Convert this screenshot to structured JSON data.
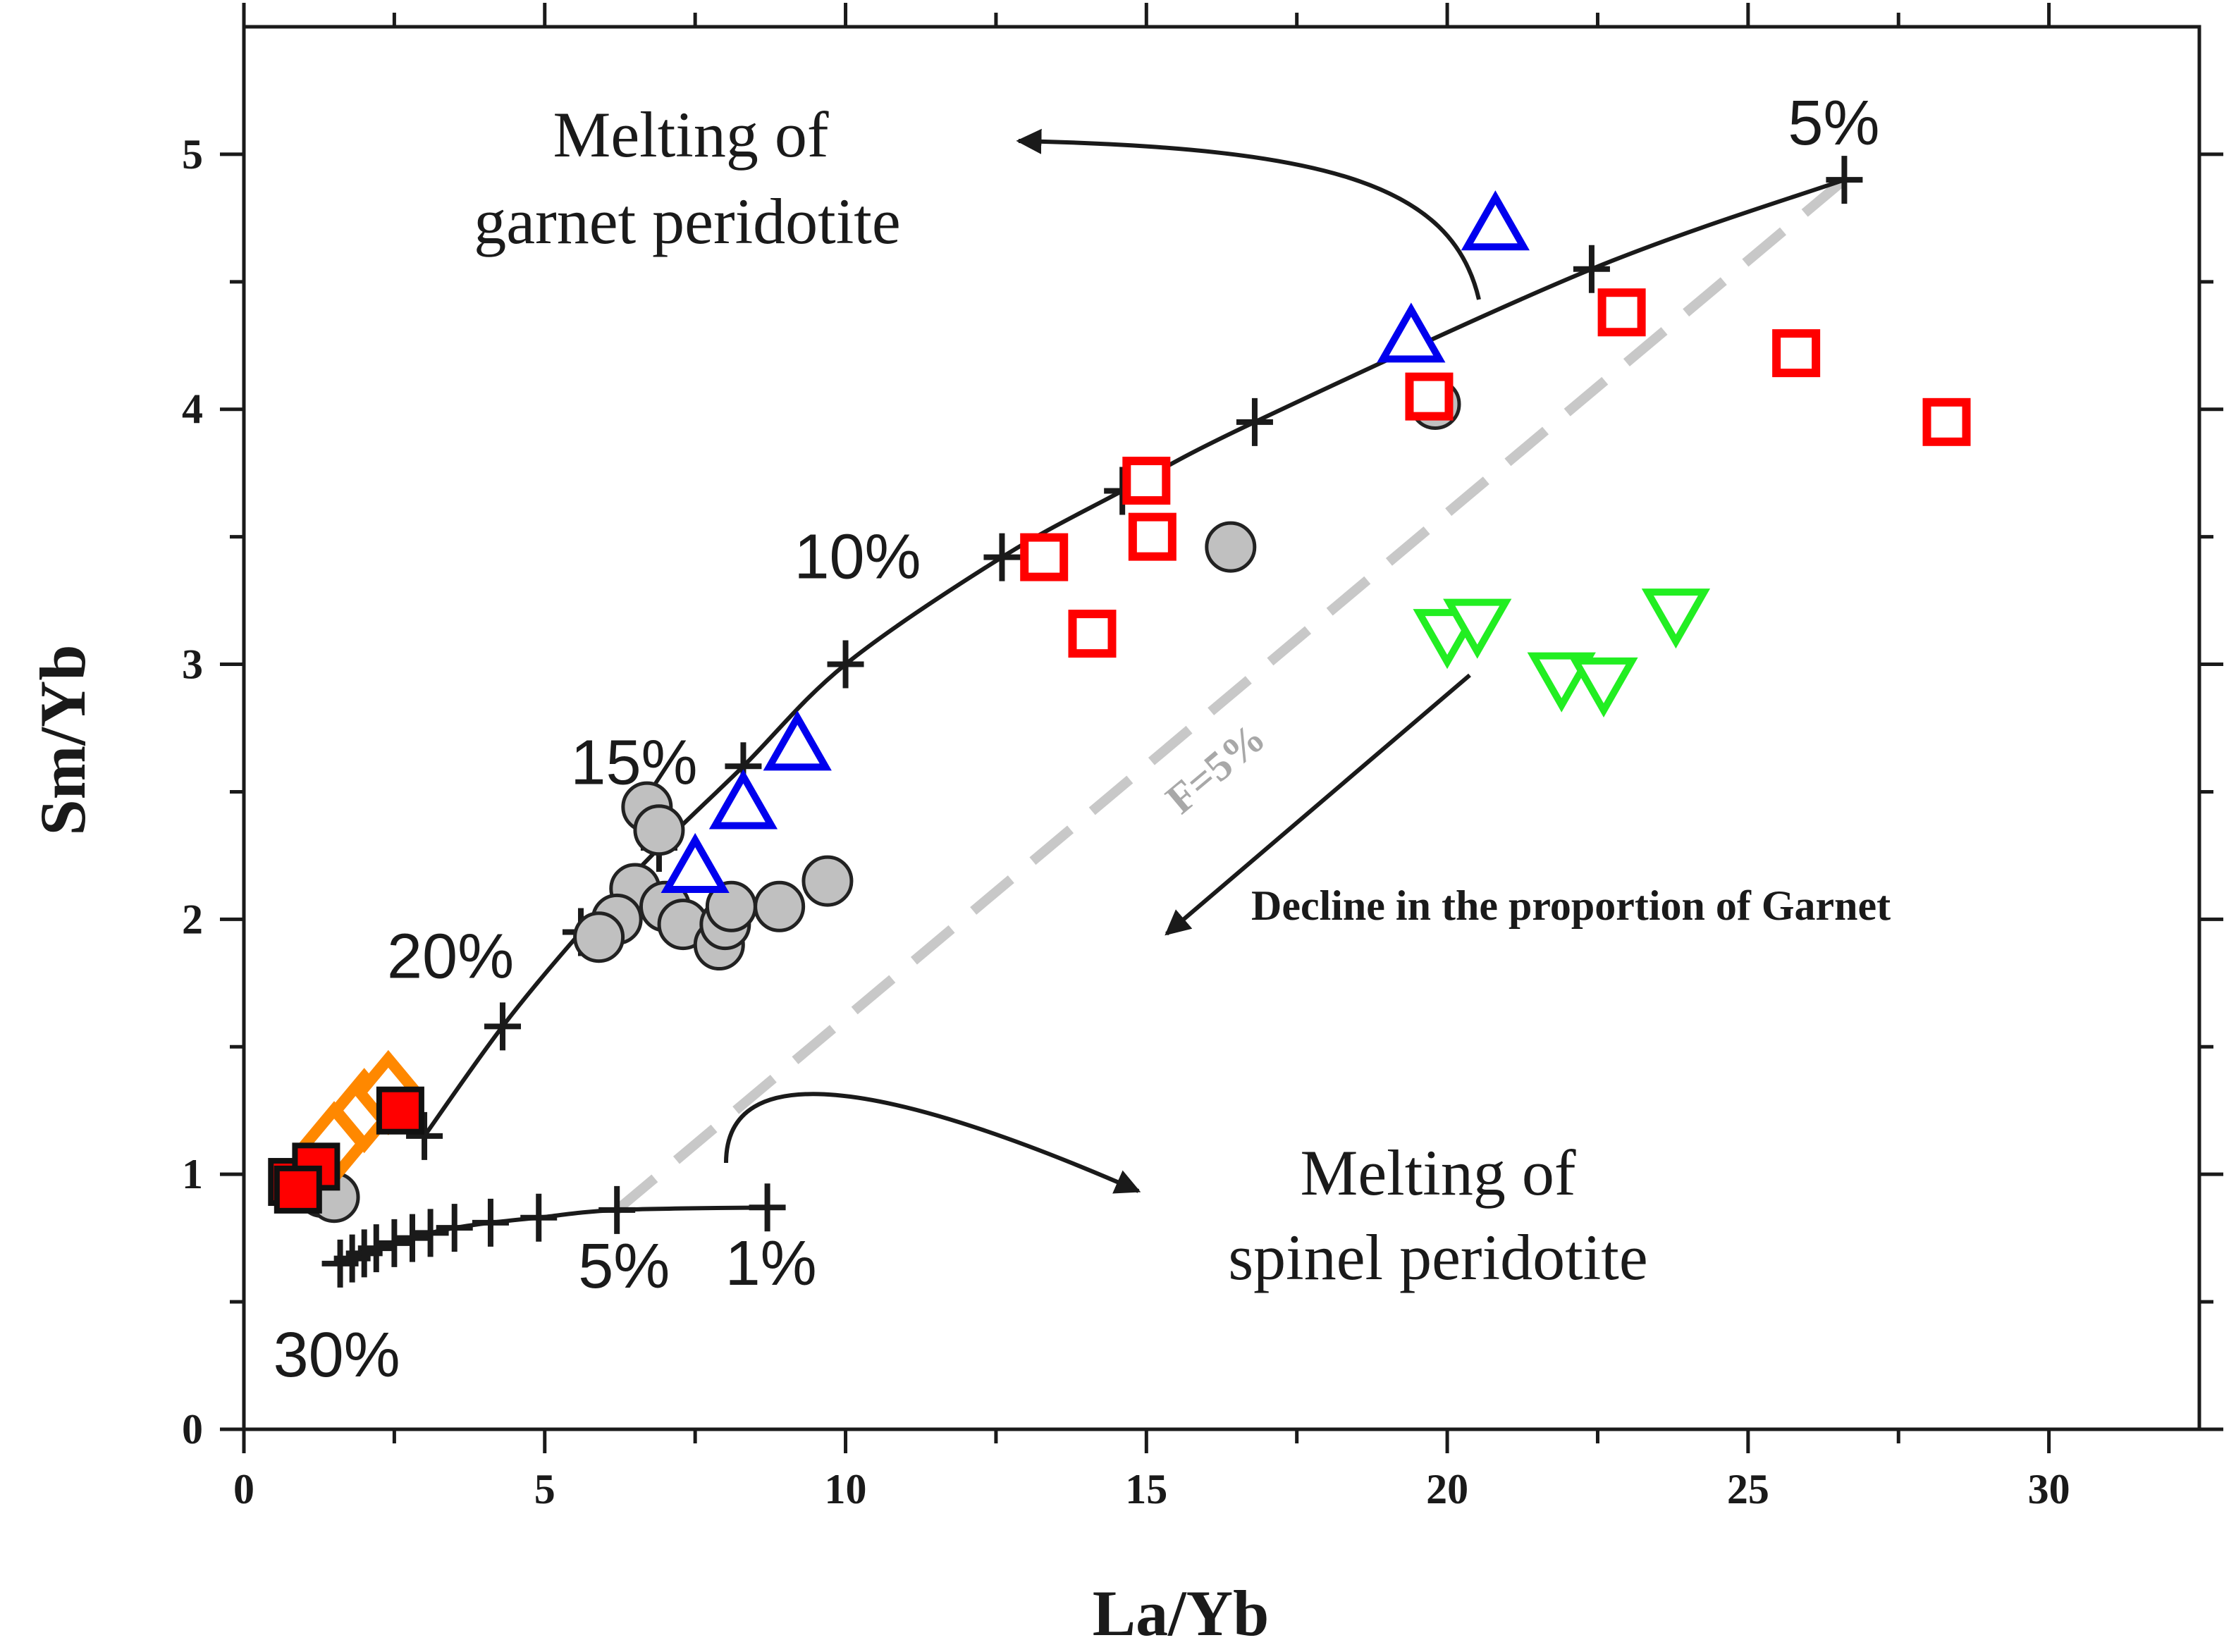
{
  "chart_data": {
    "type": "scatter",
    "title": "",
    "xlabel": "La/Yb",
    "ylabel": "Sm/Yb",
    "xlim": [
      0,
      32.5
    ],
    "ylim": [
      0,
      5.5
    ],
    "xticks": [
      0,
      5,
      10,
      15,
      20,
      25,
      30
    ],
    "yticks": [
      0,
      1,
      2,
      3,
      4,
      5
    ],
    "xtick_labels": [
      "0",
      "5",
      "10",
      "15",
      "20",
      "25",
      "30"
    ],
    "ytick_labels": [
      "0",
      "1",
      "2",
      "3",
      "4",
      "5"
    ],
    "grid": false,
    "curves": [
      {
        "name": "Melting of garnet peridotite",
        "marker": "plus",
        "points": [
          [
            26.6,
            4.9
          ],
          [
            22.4,
            4.55
          ],
          [
            16.8,
            3.95
          ],
          [
            14.6,
            3.68
          ],
          [
            12.6,
            3.42
          ],
          [
            10.0,
            3.0
          ],
          [
            8.3,
            2.6
          ],
          [
            6.9,
            2.28
          ],
          [
            5.6,
            1.95
          ],
          [
            4.3,
            1.58
          ],
          [
            3.0,
            1.15
          ]
        ],
        "labels": [
          {
            "text": "5%",
            "x": 26.6,
            "y": 4.9
          },
          {
            "text": "10%",
            "x": 12.6,
            "y": 3.42
          },
          {
            "text": "15%",
            "x": 8.3,
            "y": 2.6
          },
          {
            "text": "20%",
            "x": 5.6,
            "y": 1.95
          }
        ]
      },
      {
        "name": "Melting of spinel peridotite",
        "marker": "plus",
        "points": [
          [
            8.7,
            0.87
          ],
          [
            6.2,
            0.86
          ],
          [
            4.9,
            0.83
          ],
          [
            4.1,
            0.81
          ],
          [
            3.5,
            0.79
          ],
          [
            3.1,
            0.77
          ],
          [
            2.8,
            0.75
          ],
          [
            2.5,
            0.73
          ],
          [
            2.2,
            0.71
          ],
          [
            2.0,
            0.69
          ],
          [
            1.8,
            0.67
          ],
          [
            1.6,
            0.65
          ]
        ],
        "labels": [
          {
            "text": "1%",
            "x": 8.7,
            "y": 0.87
          },
          {
            "text": "5%",
            "x": 6.2,
            "y": 0.86
          },
          {
            "text": "30%",
            "x": 1.6,
            "y": 0.65
          }
        ]
      }
    ],
    "reference_line": {
      "label": "F=5%",
      "style": "dashed",
      "color": "#c8c8c8",
      "from": [
        6.2,
        0.86
      ],
      "to": [
        26.6,
        4.9
      ]
    },
    "series": [
      {
        "name": "gray-circles",
        "marker": "circle",
        "fill": "#c0c0c0",
        "stroke": "#222222",
        "points": [
          [
            6.7,
            2.44
          ],
          [
            6.9,
            2.35
          ],
          [
            6.5,
            2.12
          ],
          [
            6.2,
            2.0
          ],
          [
            5.9,
            1.93
          ],
          [
            7.0,
            2.05
          ],
          [
            7.3,
            1.98
          ],
          [
            7.9,
            1.9
          ],
          [
            8.0,
            1.98
          ],
          [
            8.1,
            2.05
          ],
          [
            8.9,
            2.05
          ],
          [
            9.7,
            2.15
          ],
          [
            16.4,
            3.46
          ],
          [
            19.8,
            4.02
          ],
          [
            1.3,
            0.93
          ],
          [
            1.5,
            0.91
          ]
        ]
      },
      {
        "name": "red-open-squares",
        "marker": "square",
        "fill": "#ffffff",
        "stroke": "#ff0000",
        "points": [
          [
            13.3,
            3.42
          ],
          [
            14.1,
            3.12
          ],
          [
            15.0,
            3.72
          ],
          [
            15.1,
            3.5
          ],
          [
            19.7,
            4.05
          ],
          [
            22.9,
            4.38
          ],
          [
            25.8,
            4.22
          ],
          [
            28.3,
            3.95
          ]
        ]
      },
      {
        "name": "blue-triangles",
        "marker": "triangle-up",
        "fill": "#ffffff",
        "stroke": "#0000ee",
        "points": [
          [
            7.5,
            2.2
          ],
          [
            8.3,
            2.45
          ],
          [
            9.2,
            2.68
          ],
          [
            19.4,
            4.28
          ],
          [
            20.8,
            4.72
          ]
        ]
      },
      {
        "name": "green-triangles",
        "marker": "triangle-down",
        "fill": "#ffffff",
        "stroke": "#22ee22",
        "points": [
          [
            20.0,
            3.12
          ],
          [
            20.5,
            3.16
          ],
          [
            21.9,
            2.95
          ],
          [
            22.6,
            2.93
          ],
          [
            23.8,
            3.2
          ]
        ]
      },
      {
        "name": "orange-diamonds",
        "marker": "diamond",
        "fill": "#ffffff",
        "stroke": "#ff8800",
        "points": [
          [
            1.5,
            1.12
          ],
          [
            2.0,
            1.25
          ],
          [
            2.4,
            1.32
          ]
        ]
      },
      {
        "name": "red-filled-squares",
        "marker": "square-filled",
        "fill": "#ff0000",
        "stroke": "#111111",
        "points": [
          [
            0.8,
            0.97
          ],
          [
            1.2,
            1.03
          ],
          [
            0.9,
            0.94
          ],
          [
            2.6,
            1.25
          ]
        ]
      }
    ],
    "annotations": {
      "garnet_line1": "Melting of",
      "garnet_line2": "garnet peridotite",
      "spinel_line1": "Melting of",
      "spinel_line2": "spinel peridotite",
      "garnet_decline": "Decline in the proportion of Garnet"
    },
    "colors": {
      "axis": "#1a1a1a",
      "curve": "#1a1a1a",
      "red": "#ff0000",
      "blue": "#0000ee",
      "green": "#22ee22",
      "orange": "#ff8800",
      "gray": "#c0c0c0"
    }
  }
}
